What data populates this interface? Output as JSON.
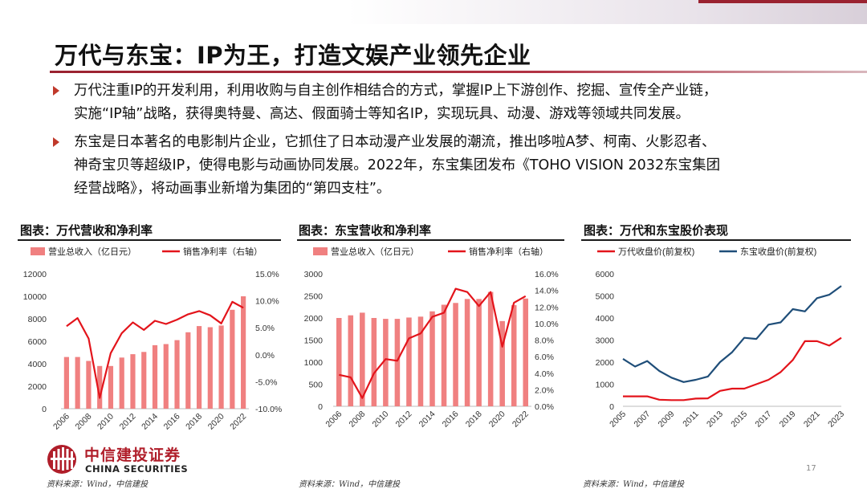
{
  "header": {
    "title": "万代与东宝：IP为王，打造文娱产业领先企业"
  },
  "bullets": [
    {
      "lines": [
        "万代注重IP的开发利用，利用收购与自主创作相结合的方式，掌握IP上下游创作、挖掘、宣传全产业链，",
        "实施“IP轴”战略，获得奥特曼、高达、假面骑士等知名IP，实现玩具、动漫、游戏等领域共同发展。"
      ]
    },
    {
      "lines": [
        "东宝是日本著名的电影制片企业，它抓住了日本动漫产业发展的潮流，推出哆啦A梦、柯南、火影忍者、",
        "神奇宝贝等超级IP，使得电影与动画协同发展。2022年，东宝集团发布《TOHO VISION 2032东宝集团",
        "经营战略》，将动画事业新增为集团的“第四支柱”。"
      ]
    }
  ],
  "colors": {
    "bar": "#f08080",
    "red_line": "#e3141b",
    "blue_line": "#1f4e79",
    "brand": "#9a2230"
  },
  "chart_data": [
    {
      "type": "bar",
      "title": "图表：万代营收和净利率",
      "source": "资料来源：Wind，中信建投",
      "categories": [
        "2006",
        "2007",
        "2008",
        "2009",
        "2010",
        "2011",
        "2012",
        "2013",
        "2014",
        "2015",
        "2016",
        "2017",
        "2018",
        "2019",
        "2020",
        "2021",
        "2022"
      ],
      "x_tick_labels": [
        "2006",
        "2008",
        "2010",
        "2012",
        "2014",
        "2016",
        "2018",
        "2020",
        "2022"
      ],
      "series": [
        {
          "name": "营业总收入（亿日元）",
          "kind": "bar",
          "axis": "left",
          "values": [
            4600,
            4600,
            4250,
            3800,
            3800,
            4550,
            4850,
            5050,
            5650,
            5750,
            6100,
            6800,
            7350,
            7250,
            7400,
            8800,
            10000
          ]
        },
        {
          "name": "销售净利率（右轴）",
          "kind": "line",
          "axis": "right",
          "values": [
            5.3,
            6.8,
            3.0,
            -8.0,
            0.3,
            4.0,
            6.0,
            4.6,
            6.3,
            5.7,
            6.5,
            7.5,
            8.1,
            7.3,
            5.8,
            9.8,
            8.7
          ]
        }
      ],
      "ylim_left": [
        0,
        12000
      ],
      "yticks_left": [
        0,
        2000,
        4000,
        6000,
        8000,
        10000,
        12000
      ],
      "ylim_right": [
        -10,
        15
      ],
      "yticks_right": [
        "-10.0%",
        "-5.0%",
        "0.0%",
        "5.0%",
        "10.0%",
        "15.0%"
      ],
      "grid": false,
      "legend": "top"
    },
    {
      "type": "bar",
      "title": "图表：东宝营收和净利率",
      "source": "资料来源：Wind，中信建投",
      "categories": [
        "2006",
        "2007",
        "2008",
        "2009",
        "2010",
        "2011",
        "2012",
        "2013",
        "2014",
        "2015",
        "2016",
        "2017",
        "2018",
        "2019",
        "2020",
        "2021",
        "2022"
      ],
      "x_tick_labels": [
        "2006",
        "2008",
        "2010",
        "2012",
        "2014",
        "2016",
        "2018",
        "2020",
        "2022"
      ],
      "series": [
        {
          "name": "营业总收入（亿日元）",
          "kind": "bar",
          "axis": "left",
          "values": [
            2000,
            2060,
            2120,
            2000,
            1980,
            1980,
            2010,
            2030,
            2150,
            2300,
            2340,
            2430,
            2430,
            2590,
            1930,
            2290,
            2440
          ]
        },
        {
          "name": "销售净利率（右轴）",
          "kind": "line",
          "axis": "right",
          "values": [
            3.8,
            3.5,
            1.0,
            4.0,
            5.7,
            5.5,
            8.2,
            8.8,
            10.8,
            11.3,
            14.2,
            13.8,
            12.1,
            13.8,
            7.2,
            12.5,
            13.3
          ]
        }
      ],
      "ylim_left": [
        0,
        3000
      ],
      "yticks_left": [
        0,
        500,
        1000,
        1500,
        2000,
        2500,
        3000
      ],
      "ylim_right": [
        0,
        16
      ],
      "yticks_right": [
        "0.0%",
        "2.0%",
        "4.0%",
        "6.0%",
        "8.0%",
        "10.0%",
        "12.0%",
        "14.0%",
        "16.0%"
      ],
      "grid": false,
      "legend": "top"
    },
    {
      "type": "line",
      "title": "图表：万代和东宝股价表现",
      "source": "资料来源：Wind，中信建投",
      "x": [
        "2005",
        "2006",
        "2007",
        "2008",
        "2009",
        "2010",
        "2011",
        "2012",
        "2013",
        "2014",
        "2015",
        "2016",
        "2017",
        "2018",
        "2019",
        "2020",
        "2021",
        "2022",
        "2023"
      ],
      "x_tick_labels": [
        "2005",
        "2007",
        "2009",
        "2011",
        "2013",
        "2015",
        "2017",
        "2019",
        "2021",
        "2023"
      ],
      "series": [
        {
          "name": "万代收盘价(前复权)",
          "color": "#e3141b",
          "values": [
            450,
            450,
            450,
            300,
            280,
            280,
            350,
            360,
            700,
            800,
            800,
            1000,
            1200,
            1550,
            2100,
            2950,
            2950,
            2750,
            3100
          ]
        },
        {
          "name": "东宝收盘价(前复权)",
          "color": "#1f4e79",
          "values": [
            2150,
            1800,
            2050,
            1600,
            1300,
            1100,
            1200,
            1350,
            2000,
            2450,
            3100,
            3050,
            3700,
            3800,
            4400,
            4300,
            4900,
            5050,
            5450
          ]
        }
      ],
      "ylim": [
        0,
        6000
      ],
      "yticks": [
        0,
        1000,
        2000,
        3000,
        4000,
        5000,
        6000
      ],
      "grid": false,
      "legend": "top"
    }
  ],
  "footer": {
    "page_number": "17",
    "logo_cn": "中信建投证券",
    "logo_en": "CHINA SECURITIES"
  }
}
